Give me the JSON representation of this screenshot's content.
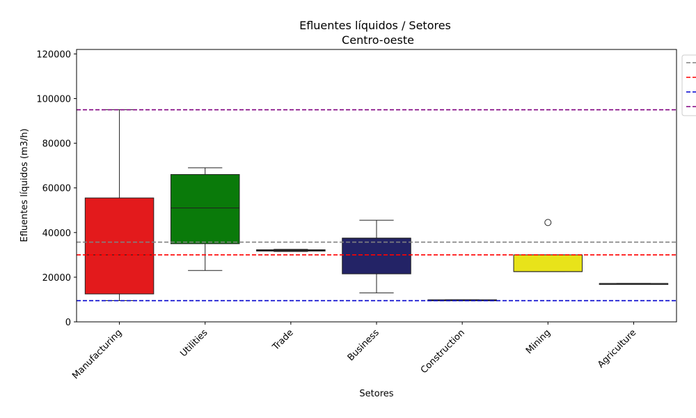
{
  "chart_data": {
    "type": "box",
    "title": "Efluentes líquidos / Setores",
    "subtitle": "Centro-oeste",
    "xlabel": "Setores",
    "ylabel": "Efluentes líquidos (m3/h)",
    "ylim": [
      0,
      122000
    ],
    "yticks": [
      0,
      20000,
      40000,
      60000,
      80000,
      100000,
      120000
    ],
    "ytick_labels": [
      "0",
      "20000",
      "40000",
      "60000",
      "80000",
      "100000",
      "120000"
    ],
    "grid": false,
    "categories": [
      "Manufacturing",
      "Utilities",
      "Trade",
      "Business",
      "Construction",
      "Mining",
      "Agriculture"
    ],
    "boxes": [
      {
        "category": "Manufacturing",
        "color": "#e31a1c",
        "whisker_low": 9500,
        "q1": 12500,
        "median": 30000,
        "q3": 55500,
        "whisker_high": 95000,
        "outliers": []
      },
      {
        "category": "Utilities",
        "color": "#0a7a0a",
        "whisker_low": 23000,
        "q1": 35000,
        "median": 51000,
        "q3": 66000,
        "whisker_high": 69000,
        "outliers": []
      },
      {
        "category": "Trade",
        "color": "#333333",
        "whisker_low": 31500,
        "q1": 31700,
        "median": 32000,
        "q3": 32300,
        "whisker_high": 32500,
        "outliers": []
      },
      {
        "category": "Business",
        "color": "#232366",
        "whisker_low": 13000,
        "q1": 21500,
        "median": 37500,
        "q3": 37500,
        "whisker_high": 45500,
        "outliers": []
      },
      {
        "category": "Construction",
        "color": "#1f1fa0",
        "whisker_low": 9800,
        "q1": 9800,
        "median": 9800,
        "q3": 9900,
        "whisker_high": 9900,
        "outliers": []
      },
      {
        "category": "Mining",
        "color": "#e8e31a",
        "whisker_low": 22500,
        "q1": 22500,
        "median": 22500,
        "q3": 30000,
        "whisker_high": 30000,
        "outliers": [
          44500
        ]
      },
      {
        "category": "Agriculture",
        "color": "#555555",
        "whisker_low": 17200,
        "q1": 17200,
        "median": 17200,
        "q3": 17200,
        "whisker_high": 17200,
        "outliers": []
      }
    ],
    "reference_lines": [
      {
        "value": 35700,
        "color": "#808080"
      },
      {
        "value": 30000,
        "color": "#ff0000"
      },
      {
        "value": 9500,
        "color": "#0000cd"
      },
      {
        "value": 95000,
        "color": "#800080"
      }
    ],
    "legend": {
      "placement": "top-right, outside"
    }
  }
}
